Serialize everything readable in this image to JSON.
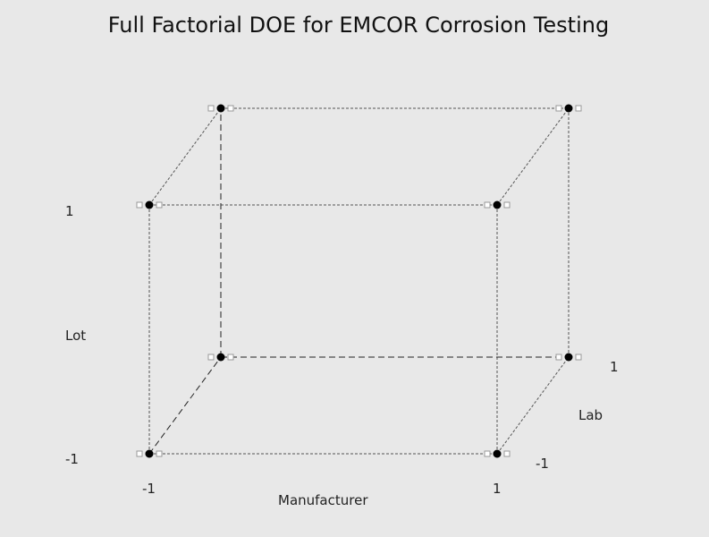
{
  "chart_data": {
    "type": "scatter",
    "subtype": "cube-plot",
    "title": "Full Factorial DOE for EMCOR Corrosion Testing",
    "factors": [
      {
        "name": "Manufacturer",
        "levels": [
          -1,
          1
        ]
      },
      {
        "name": "Lot",
        "levels": [
          -1,
          1
        ]
      },
      {
        "name": "Lab",
        "levels": [
          -1,
          1
        ]
      }
    ],
    "tick_labels": {
      "manufacturer_low": "-1",
      "manufacturer_high": "1",
      "lot_low": "-1",
      "lot_high": "1",
      "lab_low": "-1",
      "lab_high": "1"
    },
    "points": [
      {
        "Manufacturer": -1,
        "Lot": -1,
        "Lab": -1
      },
      {
        "Manufacturer": 1,
        "Lot": -1,
        "Lab": -1
      },
      {
        "Manufacturer": -1,
        "Lot": 1,
        "Lab": -1
      },
      {
        "Manufacturer": 1,
        "Lot": 1,
        "Lab": -1
      },
      {
        "Manufacturer": -1,
        "Lot": -1,
        "Lab": 1
      },
      {
        "Manufacturer": 1,
        "Lot": -1,
        "Lab": 1
      },
      {
        "Manufacturer": -1,
        "Lot": 1,
        "Lab": 1
      },
      {
        "Manufacturer": 1,
        "Lot": 1,
        "Lab": 1
      }
    ],
    "colors": {
      "background": "#e8e8e8",
      "point": "#000000",
      "edge": "#555555",
      "handle": "#999999"
    }
  }
}
